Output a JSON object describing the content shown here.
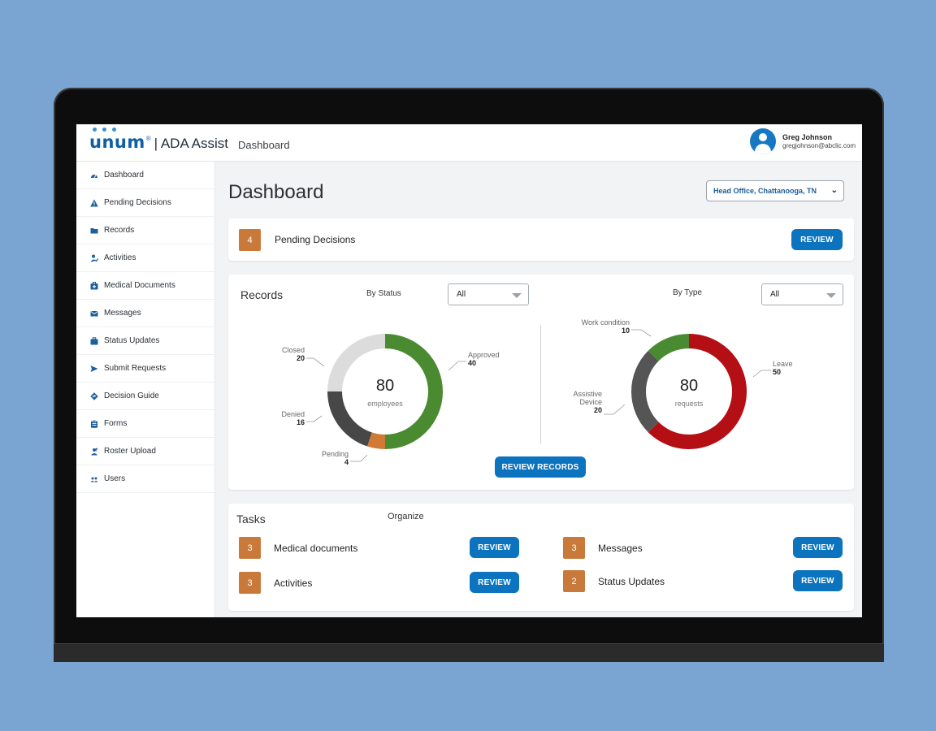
{
  "header": {
    "logo_text": "unum",
    "registered_mark": "®",
    "product": "| ADA Assist",
    "crumb": "Dashboard",
    "user_name": "Greg Johnson",
    "user_email": "gregjohnson@abclic.com"
  },
  "sidebar": {
    "items": [
      {
        "label": "Dashboard",
        "icon": "dashboard-icon"
      },
      {
        "label": "Pending Decisions",
        "icon": "warning-icon"
      },
      {
        "label": "Records",
        "icon": "folder-icon"
      },
      {
        "label": "Activities",
        "icon": "person-activity-icon"
      },
      {
        "label": "Medical Documents",
        "icon": "medical-kit-icon"
      },
      {
        "label": "Messages",
        "icon": "envelope-icon"
      },
      {
        "label": "Status Updates",
        "icon": "briefcase-icon"
      },
      {
        "label": "Submit Requests",
        "icon": "send-icon"
      },
      {
        "label": "Decision Guide",
        "icon": "signpost-icon"
      },
      {
        "label": "Forms",
        "icon": "clipboard-icon"
      },
      {
        "label": "Roster Upload",
        "icon": "upload-icon"
      },
      {
        "label": "Users",
        "icon": "users-icon"
      }
    ]
  },
  "main": {
    "title": "Dashboard",
    "location": "Head Office, Chattanooga, TN",
    "pending": {
      "count": "4",
      "label": "Pending Decisions",
      "button": "REVIEW"
    },
    "records": {
      "title": "Records",
      "by_status_label": "By Status",
      "by_status_value": "All",
      "by_type_label": "By Type",
      "by_type_value": "All",
      "button": "REVIEW RECORDS"
    },
    "tasks": {
      "title": "Tasks",
      "organize": "Organize",
      "items": [
        {
          "count": "3",
          "label": "Medical documents",
          "button": "REVIEW"
        },
        {
          "count": "3",
          "label": "Messages",
          "button": "REVIEW"
        },
        {
          "count": "3",
          "label": "Activities",
          "button": "REVIEW"
        },
        {
          "count": "2",
          "label": "Status Updates",
          "button": "REVIEW"
        }
      ]
    }
  },
  "colors": {
    "accent": "#0c74bf",
    "count_badge": "#c97a3a",
    "approved": "#4a8a30",
    "pending": "#d07a35",
    "denied": "#474747",
    "closed": "#dcdcdc",
    "leave": "#b30f14",
    "assistive": "#555555",
    "work_condition": "#4a8a30"
  },
  "chart_data": [
    {
      "type": "pie",
      "variant": "donut",
      "title": "By Status",
      "center_value": "80",
      "center_label": "employees",
      "categories": [
        "Approved",
        "Pending",
        "Denied",
        "Closed"
      ],
      "values": [
        40,
        4,
        16,
        20
      ]
    },
    {
      "type": "pie",
      "variant": "donut",
      "title": "By Type",
      "center_value": "80",
      "center_label": "requests",
      "categories": [
        "Leave",
        "Assistive Device",
        "Work condition"
      ],
      "values": [
        50,
        20,
        10
      ]
    }
  ]
}
